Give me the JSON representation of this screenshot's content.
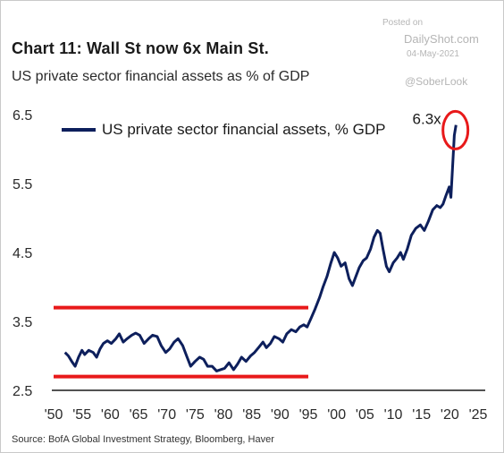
{
  "title": "Chart 11: Wall St now 6x Main St.",
  "subtitle": "US private sector financial assets as % of GDP",
  "source": "Source:  BofA Global Investment Strategy, Bloomberg, Haver",
  "watermark": {
    "posted": "Posted on",
    "site": "DailyShot.com",
    "date": "04-May-2021",
    "handle": "@SoberLook"
  },
  "colors": {
    "series": "#0d1f5c",
    "band_lines": "#e8191a",
    "highlight_circle": "#e8191a"
  },
  "chart_data": {
    "type": "line",
    "title": "Chart 11: Wall St now 6x Main St.",
    "subtitle": "US private sector financial assets as % of GDP",
    "xlabel": "",
    "ylabel": "",
    "xlim": [
      1950,
      2025
    ],
    "ylim": [
      2.5,
      6.5
    ],
    "x_ticks": [
      "'50",
      "'55",
      "'60",
      "'65",
      "'70",
      "'75",
      "'80",
      "'85",
      "'90",
      "'95",
      "'00",
      "'05",
      "'10",
      "'15",
      "'20",
      "'25"
    ],
    "y_ticks": [
      "2.5",
      "3.5",
      "4.5",
      "5.5",
      "6.5"
    ],
    "grid": false,
    "legend": {
      "placement": "top-left",
      "entries": [
        "US private sector financial assets, % GDP"
      ]
    },
    "series": [
      {
        "name": "US private sector financial assets, % GDP",
        "points": [
          [
            1952.0,
            3.05
          ],
          [
            1952.6,
            3.0
          ],
          [
            1953.2,
            2.92
          ],
          [
            1953.8,
            2.85
          ],
          [
            1954.4,
            2.98
          ],
          [
            1955.0,
            3.08
          ],
          [
            1955.5,
            3.02
          ],
          [
            1956.2,
            3.08
          ],
          [
            1957.0,
            3.05
          ],
          [
            1957.6,
            2.98
          ],
          [
            1958.2,
            3.1
          ],
          [
            1958.8,
            3.18
          ],
          [
            1959.5,
            3.22
          ],
          [
            1960.2,
            3.18
          ],
          [
            1961.0,
            3.25
          ],
          [
            1961.6,
            3.32
          ],
          [
            1962.3,
            3.2
          ],
          [
            1963.0,
            3.25
          ],
          [
            1963.8,
            3.3
          ],
          [
            1964.5,
            3.33
          ],
          [
            1965.2,
            3.3
          ],
          [
            1966.0,
            3.18
          ],
          [
            1966.8,
            3.25
          ],
          [
            1967.5,
            3.3
          ],
          [
            1968.3,
            3.28
          ],
          [
            1969.0,
            3.15
          ],
          [
            1969.8,
            3.05
          ],
          [
            1970.5,
            3.1
          ],
          [
            1971.3,
            3.2
          ],
          [
            1972.0,
            3.25
          ],
          [
            1972.8,
            3.15
          ],
          [
            1973.5,
            3.0
          ],
          [
            1974.2,
            2.85
          ],
          [
            1975.0,
            2.92
          ],
          [
            1975.8,
            2.98
          ],
          [
            1976.5,
            2.95
          ],
          [
            1977.2,
            2.85
          ],
          [
            1978.0,
            2.85
          ],
          [
            1978.8,
            2.78
          ],
          [
            1979.5,
            2.8
          ],
          [
            1980.2,
            2.82
          ],
          [
            1981.0,
            2.9
          ],
          [
            1981.8,
            2.8
          ],
          [
            1982.5,
            2.88
          ],
          [
            1983.2,
            2.98
          ],
          [
            1984.0,
            2.92
          ],
          [
            1984.8,
            3.0
          ],
          [
            1985.5,
            3.05
          ],
          [
            1986.2,
            3.12
          ],
          [
            1987.0,
            3.2
          ],
          [
            1987.6,
            3.12
          ],
          [
            1988.3,
            3.18
          ],
          [
            1989.0,
            3.28
          ],
          [
            1989.8,
            3.25
          ],
          [
            1990.5,
            3.2
          ],
          [
            1991.2,
            3.32
          ],
          [
            1992.0,
            3.38
          ],
          [
            1992.8,
            3.35
          ],
          [
            1993.5,
            3.42
          ],
          [
            1994.2,
            3.45
          ],
          [
            1994.8,
            3.42
          ],
          [
            1995.5,
            3.55
          ],
          [
            1996.2,
            3.68
          ],
          [
            1997.0,
            3.85
          ],
          [
            1997.6,
            4.0
          ],
          [
            1998.3,
            4.15
          ],
          [
            1999.0,
            4.35
          ],
          [
            1999.6,
            4.5
          ],
          [
            2000.2,
            4.42
          ],
          [
            2000.8,
            4.3
          ],
          [
            2001.5,
            4.35
          ],
          [
            2002.2,
            4.12
          ],
          [
            2002.8,
            4.02
          ],
          [
            2003.4,
            4.15
          ],
          [
            2004.0,
            4.28
          ],
          [
            2004.7,
            4.38
          ],
          [
            2005.3,
            4.42
          ],
          [
            2006.0,
            4.55
          ],
          [
            2006.6,
            4.72
          ],
          [
            2007.2,
            4.82
          ],
          [
            2007.7,
            4.78
          ],
          [
            2008.2,
            4.55
          ],
          [
            2008.8,
            4.3
          ],
          [
            2009.3,
            4.22
          ],
          [
            2010.0,
            4.35
          ],
          [
            2010.7,
            4.42
          ],
          [
            2011.3,
            4.5
          ],
          [
            2011.8,
            4.4
          ],
          [
            2012.5,
            4.55
          ],
          [
            2013.2,
            4.75
          ],
          [
            2014.0,
            4.85
          ],
          [
            2014.8,
            4.9
          ],
          [
            2015.5,
            4.82
          ],
          [
            2016.2,
            4.95
          ],
          [
            2017.0,
            5.12
          ],
          [
            2017.7,
            5.18
          ],
          [
            2018.3,
            5.15
          ],
          [
            2018.8,
            5.2
          ],
          [
            2019.3,
            5.32
          ],
          [
            2019.9,
            5.45
          ],
          [
            2020.2,
            5.3
          ],
          [
            2020.5,
            5.75
          ],
          [
            2020.8,
            6.2
          ],
          [
            2021.1,
            6.35
          ]
        ]
      }
    ],
    "reference_lines": [
      {
        "y": 3.7,
        "x_range": [
          1950,
          1995
        ]
      },
      {
        "y": 2.7,
        "x_range": [
          1950,
          1995
        ]
      }
    ],
    "annotations": [
      {
        "text": "6.3x",
        "x": 2021.0,
        "y": 6.3,
        "shape": "circle"
      }
    ]
  }
}
